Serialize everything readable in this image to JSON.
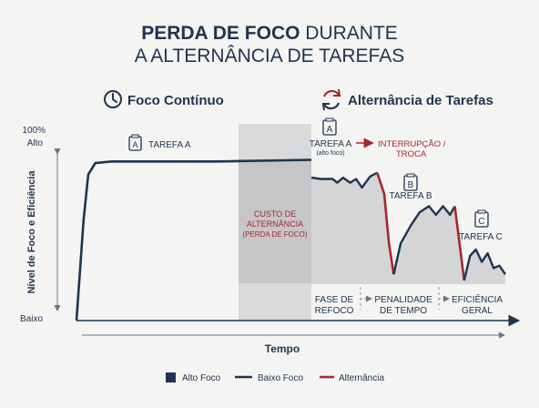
{
  "title": {
    "line1_bold": "PERDA DE FOCO",
    "line1_rest": " DURANTE",
    "line2": "A ALTERNÂNCIA DE TAREFAS"
  },
  "sections": {
    "left": "Foco Contínuo",
    "right": "Alternância de Tarefas"
  },
  "colors": {
    "navy": "#1f3450",
    "red": "#a8262c",
    "gray_band": "#c7c8ca",
    "light_band": "#d9dadc",
    "fill": "#cfd1d4"
  },
  "icons": {
    "left": "clock-icon",
    "right": "switch-arrows-icon"
  },
  "chart_data": {
    "type": "line",
    "title": "PERDA DE FOCO DURANTE A ALTERNÂNCIA DE TAREFAS",
    "xlabel": "Tempo",
    "ylabel": "Nível de Foco e Eficiência",
    "y_ticks": {
      "top_pct": "100%",
      "top": "Alto",
      "bottom": "Baixo"
    },
    "ylim": [
      0,
      100
    ],
    "series": [
      {
        "name": "Alto Foco",
        "color": "#1f3450",
        "style": "filled-square"
      },
      {
        "name": "Baixo Foco",
        "color": "#1f3450",
        "style": "line"
      },
      {
        "name": "Alternância",
        "color": "#a8262c",
        "style": "line"
      }
    ],
    "continuous_focus": {
      "points": [
        [
          0,
          0
        ],
        [
          3,
          60
        ],
        [
          5,
          88
        ],
        [
          8,
          95
        ],
        [
          15,
          96
        ],
        [
          60,
          96
        ],
        [
          100,
          97
        ]
      ]
    },
    "switching": {
      "points_task_a": [
        [
          0,
          83
        ],
        [
          8,
          82
        ],
        [
          18,
          82
        ],
        [
          22,
          79
        ],
        [
          27,
          83
        ],
        [
          33,
          79
        ],
        [
          38,
          82
        ],
        [
          43,
          75
        ],
        [
          50,
          84
        ],
        [
          56,
          87
        ]
      ],
      "points_switch": [
        [
          56,
          87
        ],
        [
          62,
          70
        ],
        [
          66,
          30
        ],
        [
          70,
          5
        ]
      ],
      "points_task_b": [
        [
          70,
          5
        ],
        [
          76,
          30
        ],
        [
          85,
          45
        ],
        [
          92,
          55
        ],
        [
          100,
          60
        ],
        [
          106,
          53
        ],
        [
          112,
          60
        ],
        [
          118,
          53
        ],
        [
          122,
          60
        ]
      ],
      "points_switch2": [
        [
          122,
          60
        ],
        [
          126,
          30
        ],
        [
          130,
          0
        ]
      ],
      "points_task_c": [
        [
          130,
          0
        ],
        [
          135,
          20
        ],
        [
          140,
          25
        ],
        [
          145,
          15
        ],
        [
          150,
          22
        ],
        [
          155,
          10
        ],
        [
          160,
          12
        ],
        [
          165,
          5
        ]
      ]
    },
    "annotations": {
      "task_a_left": "TAREFA A",
      "task_a_right": "TAREFA A",
      "task_a_right_sub": "(alto foco)",
      "interruption": "INTERRUPÇÃO /",
      "interruption2": "TROCA",
      "cost1": "CUSTO DE",
      "cost2": "ALTERNÂNCIA",
      "cost3": "(PERDA DE FOCO)",
      "task_b": "TAREFA B",
      "task_c": "TAREFA C",
      "badge_a": "A",
      "badge_b": "B",
      "badge_c": "C",
      "phase1a": "FASE DE",
      "phase1b": "REFOCO",
      "phase2a": "PENALIDADE",
      "phase2b": "DE TEMPO",
      "phase3a": "EFICIÊNCIA",
      "phase3b": "GERAL"
    },
    "legend": {
      "placement": "bottom",
      "items": [
        "Alto Foco",
        "Baixo Foco",
        "Alternância"
      ]
    }
  }
}
